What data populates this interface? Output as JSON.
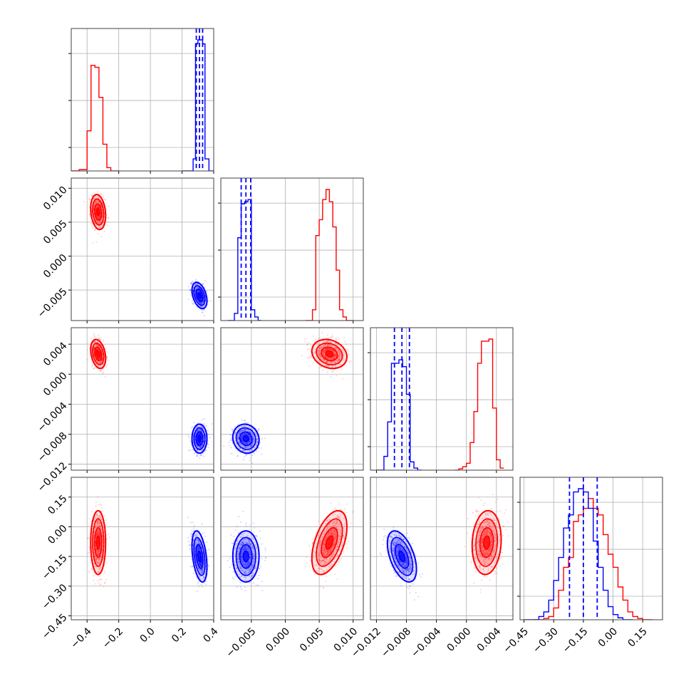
{
  "chart_data": {
    "type": "corner",
    "grid": true,
    "legend": "none",
    "colors": {
      "red": "#ff0000",
      "blue": "#0000ff",
      "grid": "#b0b0b0",
      "frame": "#404040"
    },
    "params": [
      {
        "range": [
          -0.5,
          0.4
        ],
        "ticks": [
          "-0.4",
          "-0.2",
          "0.0",
          "0.2",
          "0.4"
        ],
        "tick_values": [
          -0.4,
          -0.2,
          0.0,
          0.2,
          0.4
        ]
      },
      {
        "range": [
          -0.0095,
          0.0115
        ],
        "ticks": [
          "-0.005",
          "0.000",
          "0.005",
          "0.010"
        ],
        "tick_values": [
          -0.005,
          0.0,
          0.005,
          0.01
        ]
      },
      {
        "range": [
          -0.0128,
          0.0062
        ],
        "ticks": [
          "-0.012",
          "-0.008",
          "-0.004",
          "0.000",
          "0.004"
        ],
        "tick_values": [
          -0.012,
          -0.008,
          -0.004,
          0.0,
          0.004
        ]
      },
      {
        "range": [
          -0.47,
          0.25
        ],
        "ticks": [
          "-0.45",
          "-0.30",
          "-0.15",
          "0.00",
          "0.15"
        ],
        "tick_values": [
          -0.45,
          -0.3,
          -0.15,
          0.0,
          0.15
        ]
      }
    ],
    "histograms": [
      {
        "quantiles_blue": [
          0.29,
          0.31,
          0.33
        ],
        "red": {
          "edges": [
            -0.5,
            -0.45,
            -0.4,
            -0.375,
            -0.35,
            -0.325,
            -0.3,
            -0.275,
            -0.25,
            -0.2
          ],
          "counts": [
            0,
            2,
            60,
            158,
            155,
            110,
            40,
            5,
            0
          ]
        },
        "blue": {
          "edges": [
            0.2,
            0.27,
            0.285,
            0.3,
            0.315,
            0.33,
            0.345,
            0.37,
            0.4
          ],
          "counts": [
            0,
            18,
            190,
            196,
            196,
            190,
            18,
            0
          ]
        }
      },
      {
        "quantiles_blue": [
          -0.0065,
          -0.0058,
          -0.0051
        ],
        "red": {
          "edges": [
            0.003,
            0.004,
            0.0045,
            0.005,
            0.0055,
            0.006,
            0.0065,
            0.007,
            0.0075,
            0.008,
            0.0085,
            0.009,
            0.01
          ],
          "counts": [
            0,
            15,
            118,
            140,
            168,
            182,
            165,
            130,
            70,
            15,
            5,
            0
          ]
        },
        "blue": {
          "edges": [
            -0.0085,
            -0.0075,
            -0.007,
            -0.0065,
            -0.006,
            -0.0055,
            -0.005,
            -0.0045,
            -0.004,
            -0.0035
          ],
          "counts": [
            0,
            10,
            115,
            162,
            165,
            168,
            15,
            5,
            0
          ]
        }
      },
      {
        "quantiles_blue": [
          -0.0096,
          -0.0086,
          -0.0076
        ],
        "red": {
          "edges": [
            -0.0015,
            -0.001,
            -0.0005,
            0.0,
            0.0005,
            0.001,
            0.0015,
            0.002,
            0.0025,
            0.003,
            0.0035,
            0.004,
            0.0045,
            0.005
          ],
          "counts": [
            0,
            2,
            5,
            10,
            40,
            85,
            155,
            187,
            187,
            190,
            90,
            15,
            3
          ]
        },
        "blue": {
          "edges": [
            -0.012,
            -0.011,
            -0.0105,
            -0.01,
            -0.0095,
            -0.009,
            -0.0085,
            -0.008,
            -0.0075,
            -0.007,
            -0.0065,
            -0.006
          ],
          "counts": [
            0,
            20,
            70,
            155,
            155,
            160,
            150,
            110,
            12,
            3,
            0
          ]
        }
      },
      {
        "quantiles_blue": [
          -0.22,
          -0.15,
          -0.08
        ],
        "red": {
          "edges": [
            -0.4,
            -0.35,
            -0.325,
            -0.3,
            -0.275,
            -0.25,
            -0.225,
            -0.2,
            -0.175,
            -0.15,
            -0.125,
            -0.1,
            -0.075,
            -0.05,
            -0.025,
            0.0,
            0.025,
            0.05,
            0.075,
            0.1,
            0.125,
            0.15,
            0.2
          ],
          "counts": [
            0,
            2,
            5,
            18,
            45,
            80,
            95,
            150,
            160,
            170,
            185,
            170,
            160,
            130,
            100,
            80,
            50,
            30,
            12,
            5,
            2,
            0
          ]
        },
        "blue": {
          "edges": [
            -0.45,
            -0.375,
            -0.35,
            -0.325,
            -0.3,
            -0.275,
            -0.25,
            -0.225,
            -0.2,
            -0.175,
            -0.15,
            -0.125,
            -0.1,
            -0.075,
            -0.05,
            -0.025,
            0.0,
            0.025,
            0.05,
            0.1
          ],
          "counts": [
            0,
            5,
            12,
            30,
            60,
            95,
            140,
            160,
            195,
            200,
            195,
            170,
            120,
            80,
            45,
            20,
            8,
            3,
            0
          ]
        }
      }
    ],
    "clusters": {
      "red": [
        -0.33,
        0.0065,
        0.0027,
        -0.08
      ],
      "blue": [
        0.31,
        -0.0058,
        -0.0086,
        -0.15
      ]
    },
    "cluster_widths": {
      "red": [
        0.022,
        0.0012,
        0.0009,
        0.075
      ],
      "blue": [
        0.022,
        0.0009,
        0.0009,
        0.06
      ]
    },
    "correlations": [
      {
        "row": 1,
        "col": 0,
        "red": -0.2,
        "blue": -0.4
      },
      {
        "row": 2,
        "col": 0,
        "red": -0.3,
        "blue": 0.0
      },
      {
        "row": 2,
        "col": 1,
        "red": -0.2,
        "blue": -0.1
      },
      {
        "row": 3,
        "col": 0,
        "red": 0.0,
        "blue": -0.4
      },
      {
        "row": 3,
        "col": 1,
        "red": 0.5,
        "blue": 0.0
      },
      {
        "row": 3,
        "col": 2,
        "red": 0.1,
        "blue": -0.5
      }
    ]
  }
}
